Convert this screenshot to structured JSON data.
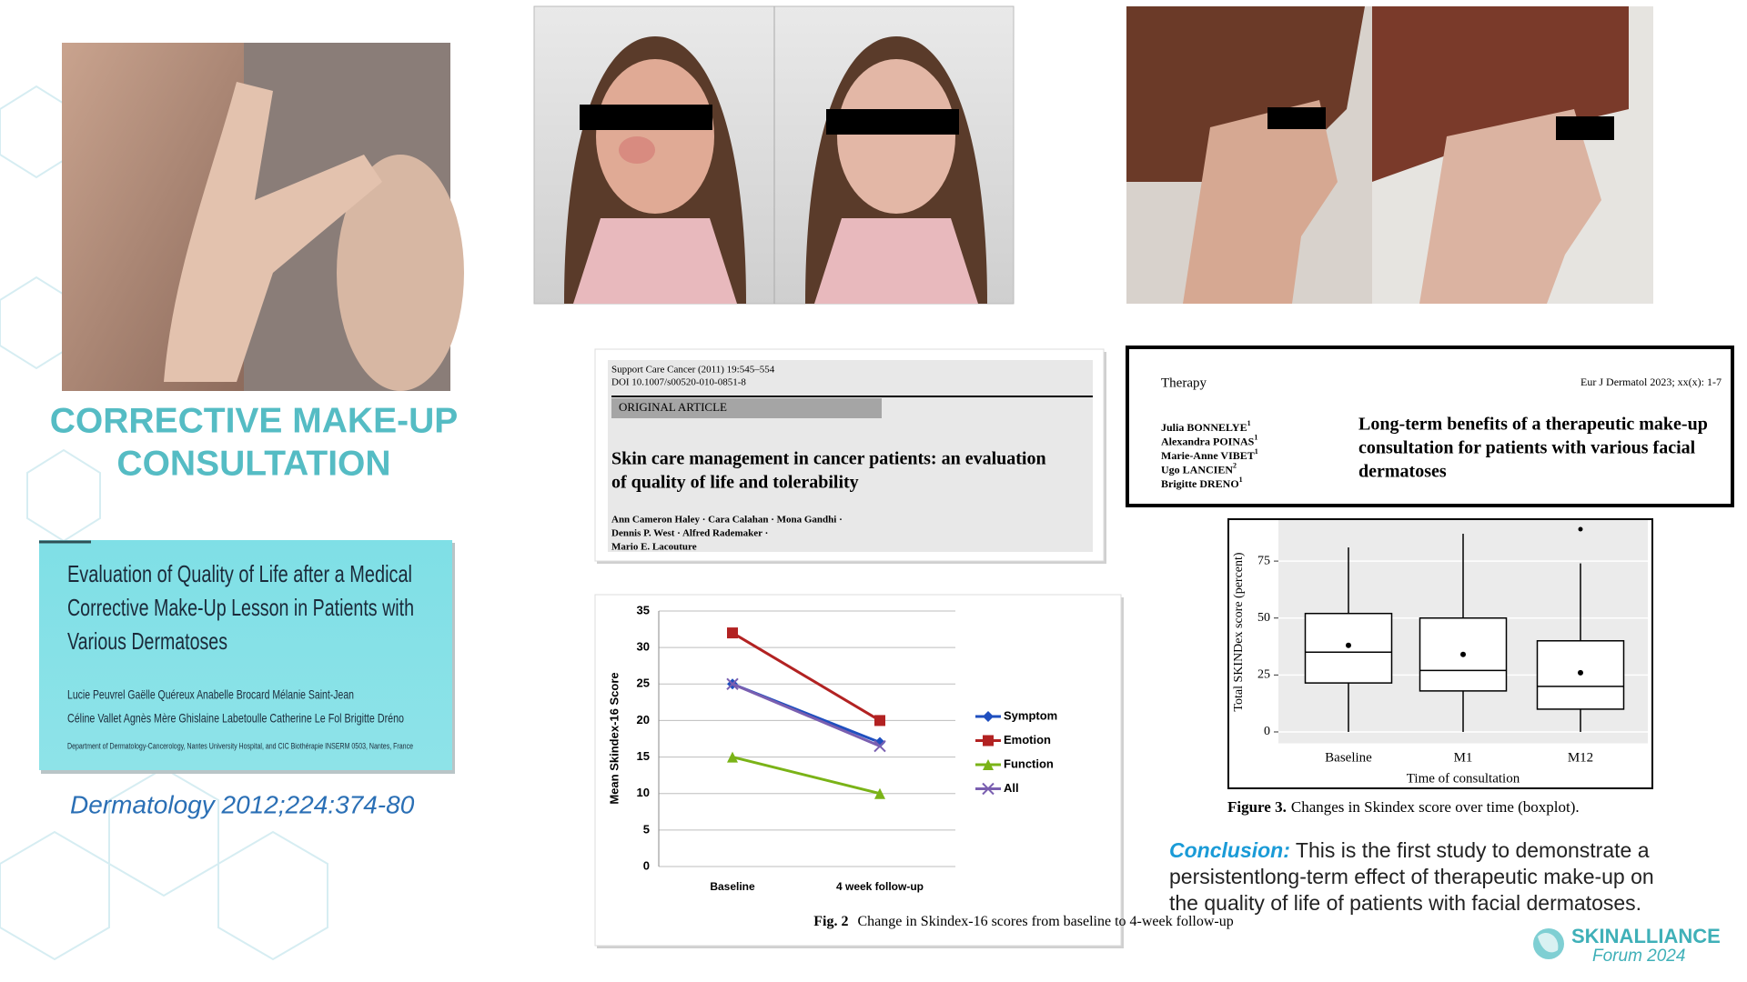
{
  "left": {
    "title_lines": [
      "CORRECTIVE MAKE-UP",
      "CONSULTATION"
    ],
    "paper": {
      "title_lines": [
        "Evaluation of Quality of Life after a Medical",
        "Corrective Make-Up Lesson in Patients with",
        "Various Dermatoses"
      ],
      "authors_lines": [
        "Lucie Peuvrel   Gaëlle Quéreux   Anabelle Brocard   Mélanie Saint-Jean",
        "Céline Vallet   Agnès Mère   Ghislaine Labetoulle   Catherine Le Fol   Brigitte Dréno"
      ],
      "affiliation": "Department of Dermatology-Cancerology, Nantes University Hospital, and CIC Biothérapie INSERM 0503, Nantes, France"
    },
    "citation": "Dermatology 2012;224:374-80"
  },
  "article1": {
    "journal": "Support Care Cancer (2011) 19:545–554",
    "doi": "DOI 10.1007/s00520-010-0851-8",
    "section": "ORIGINAL ARTICLE",
    "title_lines": [
      "Skin care management in cancer patients: an evaluation",
      "of quality of life and tolerability"
    ],
    "authors_lines": [
      "Ann Cameron Haley · Cara Calahan · Mona Gandhi ·",
      "Dennis P. West · Alfred Rademaker ·",
      "Mario E. Lacouture"
    ]
  },
  "line_chart": {
    "type": "line",
    "categories": [
      "Baseline",
      "4 week follow-up"
    ],
    "series": [
      {
        "name": "Symptom",
        "color": "#1f4fbf",
        "marker": "diamond",
        "values": [
          25,
          17
        ]
      },
      {
        "name": "Emotion",
        "color": "#b22222",
        "marker": "square",
        "values": [
          32,
          20
        ]
      },
      {
        "name": "Function",
        "color": "#7ab317",
        "marker": "triangle",
        "values": [
          15,
          10
        ]
      },
      {
        "name": "All",
        "color": "#7a5fb0",
        "marker": "x",
        "values": [
          25,
          16.5
        ]
      }
    ],
    "ylim": [
      0,
      35
    ],
    "yticks": [
      0,
      5,
      10,
      15,
      20,
      25,
      30,
      35
    ],
    "grid": true,
    "y_label": "Mean Skindex-16 Score",
    "caption_label": "Fig. 2",
    "caption": "Change in Skindex-16 scores from baseline to 4-week follow-up"
  },
  "article2": {
    "section": "Therapy",
    "journal": "Eur J Dermatol 2023; xx(x): 1-7",
    "authors": [
      {
        "name": "Julia BONNELYE",
        "sup": "1"
      },
      {
        "name": "Alexandra POINAS",
        "sup": "1"
      },
      {
        "name": "Marie-Anne VIBET",
        "sup": "1"
      },
      {
        "name": "Ugo LANCIEN",
        "sup": "2"
      },
      {
        "name": "Brigitte DRENO",
        "sup": "1"
      }
    ],
    "title_lines": [
      "Long-term benefits of a therapeutic make-up",
      "consultation for patients with various facial",
      "dermatoses"
    ]
  },
  "box_chart": {
    "type": "box",
    "categories": [
      "Baseline",
      "M1",
      "M12"
    ],
    "boxes": [
      {
        "whisker_low": 0,
        "q1": 21.5,
        "median": 35,
        "q3": 52,
        "whisker_high": 81,
        "mean": 38
      },
      {
        "whisker_low": 0,
        "q1": 18,
        "median": 27,
        "q3": 50,
        "whisker_high": 87,
        "mean": 34
      },
      {
        "whisker_low": 0,
        "q1": 10,
        "median": 20,
        "q3": 40,
        "whisker_high": 74,
        "mean": 26,
        "outliers": [
          89
        ]
      }
    ],
    "ylim": [
      -5,
      93
    ],
    "yticks": [
      0,
      25,
      50,
      75
    ],
    "y_label": "Total SKINDex score (percent)",
    "x_label": "Time of consultation",
    "caption_label": "Figure 3.",
    "caption": "Changes in Skindex score over time (boxplot)."
  },
  "conclusion": {
    "label": "Conclusion:",
    "lines": [
      "This is the first study to demonstrate a",
      "persistentlong-term effect of therapeutic make-up on",
      "the quality of life of patients with facial dermatoses."
    ]
  },
  "logo": {
    "name": "SKINALLIANCE",
    "event": "Forum 2024"
  }
}
